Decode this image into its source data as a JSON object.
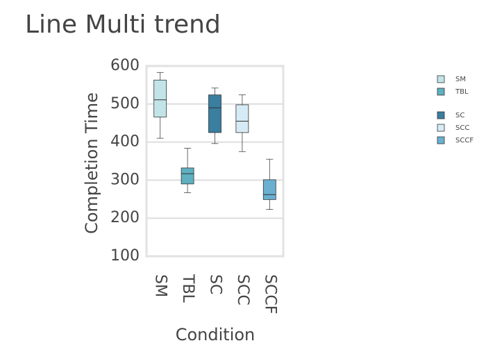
{
  "chart_data": {
    "type": "box",
    "title": "Line Multi trend",
    "x_label": "Condition",
    "y_label": "Completion Time",
    "categories": [
      "SM",
      "TBL",
      "SC",
      "SCC",
      "SCCF"
    ],
    "series": [
      {
        "name": "SM",
        "color": "#c2e4e8",
        "min": 410,
        "q1": 466,
        "median": 511,
        "q3": 563,
        "max": 583
      },
      {
        "name": "TBL",
        "color": "#5fb0c0",
        "min": 267,
        "q1": 290,
        "median": 317,
        "q3": 332,
        "max": 384
      },
      {
        "name": "SC",
        "color": "#3a7ea0",
        "min": 396,
        "q1": 425,
        "median": 490,
        "q3": 524,
        "max": 542
      },
      {
        "name": "SCC",
        "color": "#d6ebf5",
        "min": 375,
        "q1": 425,
        "median": 455,
        "q3": 498,
        "max": 524
      },
      {
        "name": "SCCF",
        "color": "#6ab0d0",
        "min": 223,
        "q1": 249,
        "median": 262,
        "q3": 301,
        "max": 355
      }
    ],
    "ylim": [
      100,
      600
    ],
    "yticks": [
      100,
      200,
      300,
      400,
      500,
      600
    ],
    "grid": true,
    "legend": "right"
  }
}
